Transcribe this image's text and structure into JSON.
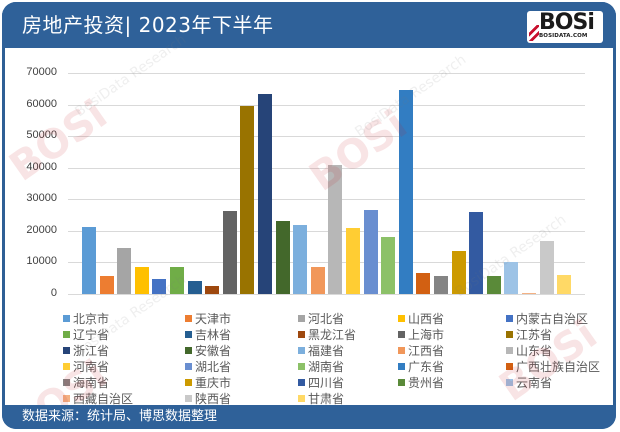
{
  "header": {
    "title": "房地产投资| 2023年下半年",
    "logo_text": "BOSi",
    "logo_subtext": "BOSIDATA.COM"
  },
  "footer": {
    "source": "数据来源：统计局、博思数据整理"
  },
  "watermark": {
    "brand": "BOSi",
    "cn": "博思数据",
    "en": "BosiData Research"
  },
  "chart_data": {
    "type": "bar",
    "title": "房地产投资| 2023年下半年",
    "xlabel": "",
    "ylabel": "",
    "ylim": [
      0,
      70000
    ],
    "yticks": [
      0,
      10000,
      20000,
      30000,
      40000,
      50000,
      60000,
      70000
    ],
    "grid": true,
    "legend_position": "bottom",
    "categories": [
      "北京市",
      "天津市",
      "河北省",
      "山西省",
      "内蒙古自治区",
      "辽宁省",
      "吉林省",
      "黑龙江省",
      "上海市",
      "江苏省",
      "浙江省",
      "安徽省",
      "福建省",
      "江西省",
      "山东省",
      "河南省",
      "湖北省",
      "湖南省",
      "广东省",
      "广西壮族自治区",
      "海南省",
      "重庆市",
      "四川省",
      "贵州省",
      "云南省",
      "西藏自治区",
      "陕西省",
      "甘肃省"
    ],
    "values": [
      21100,
      5800,
      14700,
      8400,
      4900,
      8700,
      4000,
      2400,
      26400,
      59400,
      63200,
      23200,
      22000,
      8400,
      41000,
      20800,
      26700,
      17900,
      64500,
      6500,
      5600,
      13700,
      26100,
      5800,
      10100,
      400,
      16900,
      6100
    ],
    "colors": [
      "#5b9bd5",
      "#ed7d31",
      "#a5a5a5",
      "#ffc000",
      "#4472c4",
      "#70ad47",
      "#255e91",
      "#9e480e",
      "#636363",
      "#997300",
      "#264478",
      "#43682b",
      "#7cafdd",
      "#f1975a",
      "#b7b7b7",
      "#ffcd33",
      "#698ed0",
      "#8cc168",
      "#327dc2",
      "#d26012",
      "#848484",
      "#cc9a00",
      "#335aa1",
      "#5a8a39",
      "#9dc3e6",
      "#f4b183",
      "#c9c9c9",
      "#ffd966"
    ]
  },
  "legend": {
    "items": [
      {
        "label": "北京市",
        "color": "#5b9bd5"
      },
      {
        "label": "天津市",
        "color": "#ed7d31"
      },
      {
        "label": "河北省",
        "color": "#a5a5a5"
      },
      {
        "label": "山西省",
        "color": "#ffc000"
      },
      {
        "label": "内蒙古自治区",
        "color": "#4472c4"
      },
      {
        "label": "辽宁省",
        "color": "#70ad47"
      },
      {
        "label": "吉林省",
        "color": "#255e91"
      },
      {
        "label": "黑龙江省",
        "color": "#9e480e"
      },
      {
        "label": "上海市",
        "color": "#636363"
      },
      {
        "label": "江苏省",
        "color": "#997300"
      },
      {
        "label": "浙江省",
        "color": "#264478"
      },
      {
        "label": "安徽省",
        "color": "#43682b"
      },
      {
        "label": "福建省",
        "color": "#7cafdd"
      },
      {
        "label": "江西省",
        "color": "#f1975a"
      },
      {
        "label": "山东省",
        "color": "#b7b7b7"
      },
      {
        "label": "河南省",
        "color": "#ffcd33"
      },
      {
        "label": "湖北省",
        "color": "#698ed0"
      },
      {
        "label": "湖南省",
        "color": "#8cc168"
      },
      {
        "label": "广东省",
        "color": "#327dc2"
      },
      {
        "label": "广西壮族自治区",
        "color": "#d26012"
      },
      {
        "label": "海南省",
        "color": "#848484"
      },
      {
        "label": "重庆市",
        "color": "#cc9a00"
      },
      {
        "label": "四川省",
        "color": "#335aa1"
      },
      {
        "label": "贵州省",
        "color": "#5a8a39"
      },
      {
        "label": "云南省",
        "color": "#9dc3e6"
      },
      {
        "label": "西藏自治区",
        "color": "#f4b183"
      },
      {
        "label": "陕西省",
        "color": "#c9c9c9"
      },
      {
        "label": "甘肃省",
        "color": "#ffd966"
      }
    ]
  }
}
